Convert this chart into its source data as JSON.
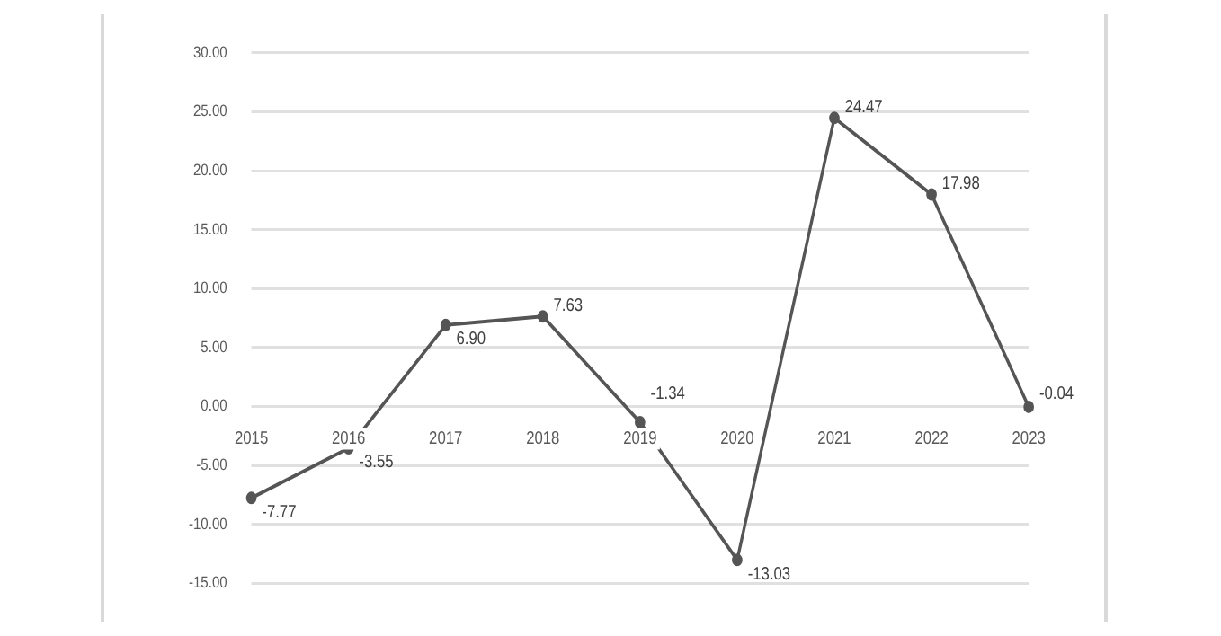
{
  "chart_data": {
    "type": "line",
    "categories": [
      "2015",
      "2016",
      "2017",
      "2018",
      "2019",
      "2020",
      "2021",
      "2022",
      "2023"
    ],
    "series": [
      {
        "color": "#555555",
        "values": [
          -7.77,
          -3.55,
          6.9,
          7.63,
          -1.34,
          -13.03,
          24.47,
          17.98,
          -0.04
        ],
        "value_labels": [
          "-7.77",
          "-3.55",
          "6.90",
          "7.63",
          "-1.34",
          "-13.03",
          "24.47",
          "17.98",
          "-0.04"
        ]
      }
    ],
    "ylim": [
      -15,
      30
    ],
    "yticks": [
      {
        "value": -15,
        "label": "-15.00"
      },
      {
        "value": -10,
        "label": "-10.00"
      },
      {
        "value": -5,
        "label": "-5.00"
      },
      {
        "value": 0,
        "label": "0.00"
      },
      {
        "value": 5,
        "label": "5.00"
      },
      {
        "value": 10,
        "label": "10.00"
      },
      {
        "value": 15,
        "label": "15.00"
      },
      {
        "value": 20,
        "label": "20.00"
      },
      {
        "value": 25,
        "label": "25.00"
      },
      {
        "value": 30,
        "label": "30.00"
      }
    ],
    "grid": "y",
    "legend": false,
    "marker": "circle",
    "line_style": "solid"
  }
}
